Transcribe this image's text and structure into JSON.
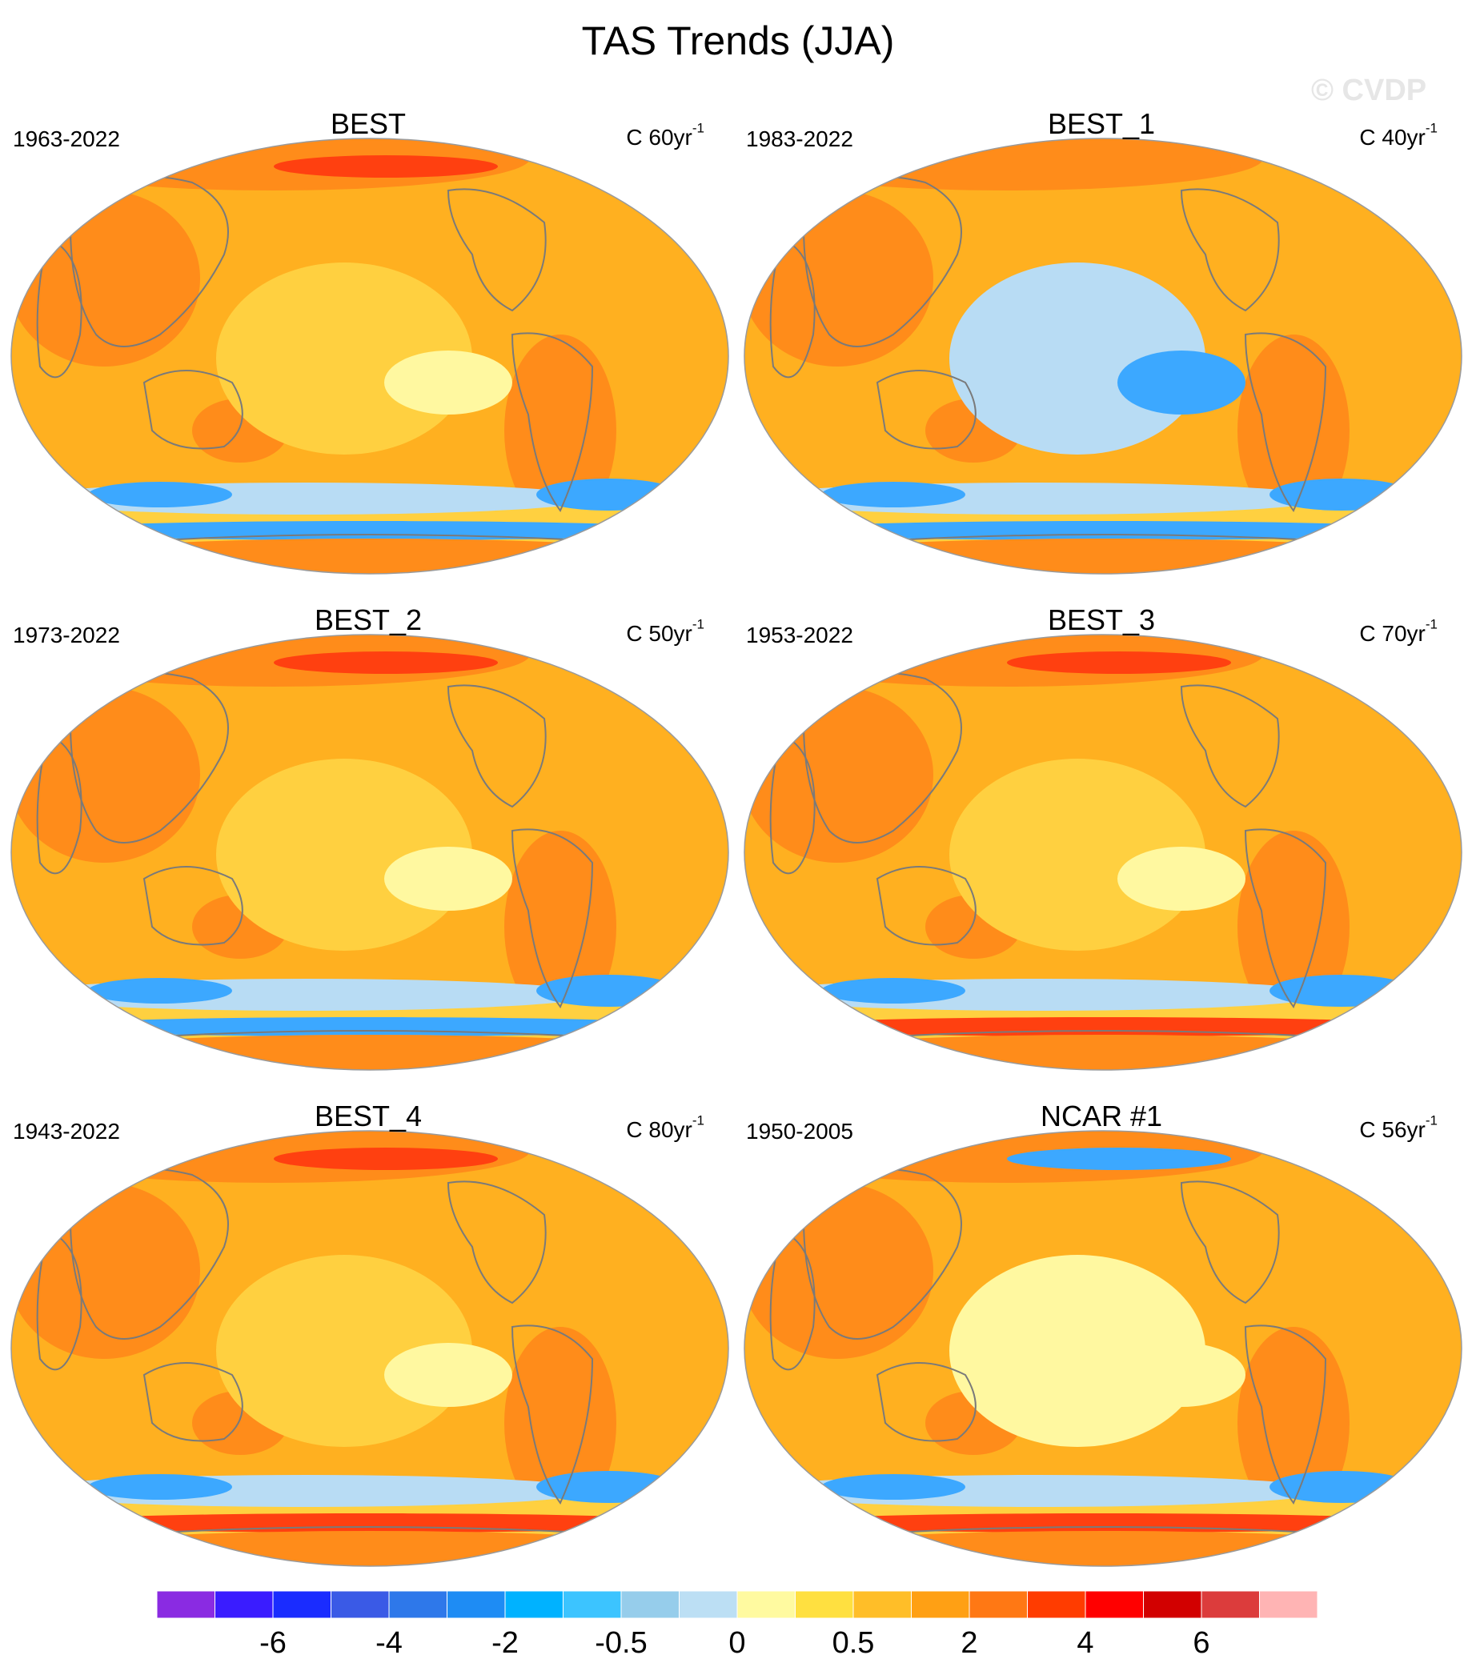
{
  "title": "TAS Trends (JJA)",
  "watermark": "© CVDP",
  "panels": [
    {
      "title": "BEST",
      "period": "1963-2022",
      "units": "C",
      "scale": "60yr",
      "exponent": "-1"
    },
    {
      "title": "BEST_1",
      "period": "1983-2022",
      "units": "C",
      "scale": "40yr",
      "exponent": "-1"
    },
    {
      "title": "BEST_2",
      "period": "1973-2022",
      "units": "C",
      "scale": "50yr",
      "exponent": "-1"
    },
    {
      "title": "BEST_3",
      "period": "1953-2022",
      "units": "C",
      "scale": "70yr",
      "exponent": "-1"
    },
    {
      "title": "BEST_4",
      "period": "1943-2022",
      "units": "C",
      "scale": "80yr",
      "exponent": "-1"
    },
    {
      "title": "NCAR #1",
      "period": "1950-2005",
      "units": "C",
      "scale": "56yr",
      "exponent": "-1"
    }
  ],
  "colorbar": {
    "labels": [
      "-6",
      "-4",
      "-2",
      "-0.5",
      "0",
      "0.5",
      "2",
      "4",
      "6"
    ],
    "colors": [
      "#8a2be2",
      "#3a1cff",
      "#1a2cff",
      "#3a5ae6",
      "#2e78ea",
      "#1e8cf4",
      "#00b2ff",
      "#3cc4ff",
      "#96cdeb",
      "#bcdff4",
      "#fffaa0",
      "#ffe040",
      "#ffbe28",
      "#ffa014",
      "#ff7814",
      "#ff3c00",
      "#ff0000",
      "#d20000",
      "#dc3c3c",
      "#ffb4b4"
    ]
  },
  "map_palette": {
    "ocean_base": "#ffb020",
    "warm": "#ff8c1a",
    "hot": "#ff4010",
    "mild": "#ffd040",
    "neutral": "#fff8a0",
    "cool": "#b8dcf4",
    "cold": "#3ca8ff",
    "coast": "#7a7a7a"
  }
}
